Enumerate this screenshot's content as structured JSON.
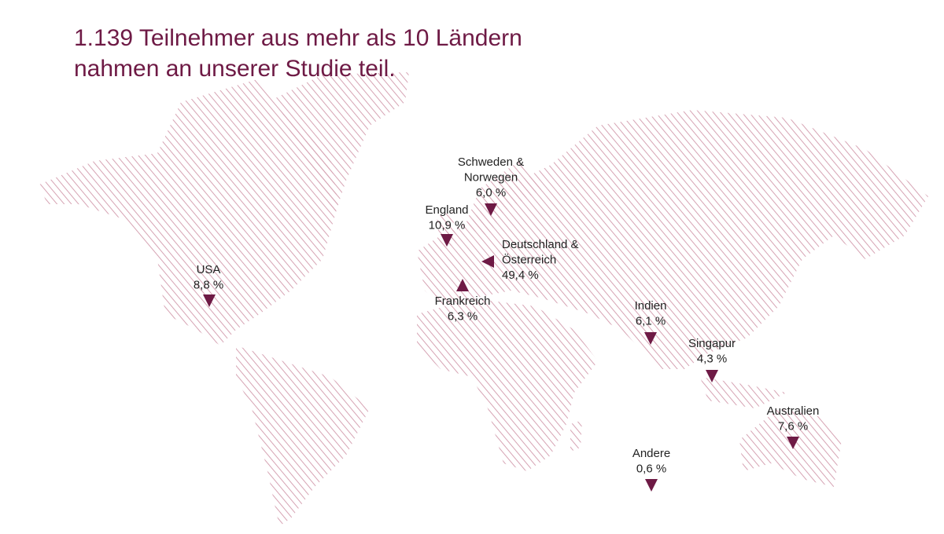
{
  "title": [
    "1.139 Teilnehmer aus mehr als 10 Ländern",
    "nahmen an unserer Studie teil."
  ],
  "markers": [
    {
      "name": [
        "USA"
      ],
      "share": "8,8 %"
    },
    {
      "name": [
        "England"
      ],
      "share": "10,9 %"
    },
    {
      "name": [
        "Schweden &",
        "Norwegen"
      ],
      "share": "6,0 %"
    },
    {
      "name": [
        "Deutschland &",
        "Österreich"
      ],
      "share": "49,4 %"
    },
    {
      "name": [
        "Frankreich"
      ],
      "share": "6,3 %"
    },
    {
      "name": [
        "Indien"
      ],
      "share": "6,1 %"
    },
    {
      "name": [
        "Singapur"
      ],
      "share": "4,3 %"
    },
    {
      "name": [
        "Australien"
      ],
      "share": "7,6 %"
    },
    {
      "name": [
        "Andere"
      ],
      "share": "0,6 %"
    }
  ]
}
